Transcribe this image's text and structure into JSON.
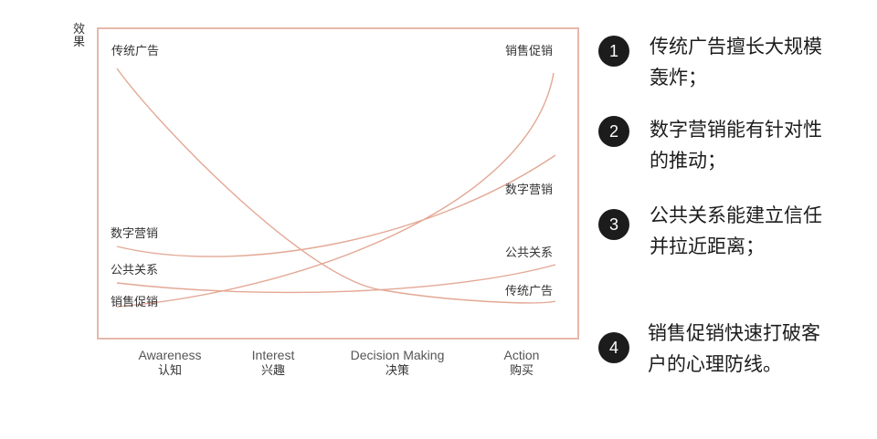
{
  "y_axis_label": [
    "效",
    "果"
  ],
  "corner_labels": {
    "top_left": "传统广告",
    "top_right": "销售促销"
  },
  "left_labels": [
    "数字营销",
    "公共关系",
    "销售促销"
  ],
  "right_labels": [
    "数字营销",
    "公共关系",
    "传统广告"
  ],
  "stages": [
    {
      "en": "Awareness",
      "cn": "认知"
    },
    {
      "en": "Interest",
      "cn": "兴趣"
    },
    {
      "en": "Decision Making",
      "cn": "决策"
    },
    {
      "en": "Action",
      "cn": "购买"
    }
  ],
  "notes": [
    {
      "num": "1",
      "text": "传统广告擅长大规模轰炸；"
    },
    {
      "num": "2",
      "text": "数字营销能有针对性的推动；"
    },
    {
      "num": "3",
      "text": "公共关系能建立信任并拉近距离；"
    },
    {
      "num": "4",
      "text": "销售促销快速打破客户的心理防线。"
    }
  ],
  "colors": {
    "frame": "#e6b8ab",
    "curve": "#e3a895",
    "badge": "#1c1c1c"
  }
}
